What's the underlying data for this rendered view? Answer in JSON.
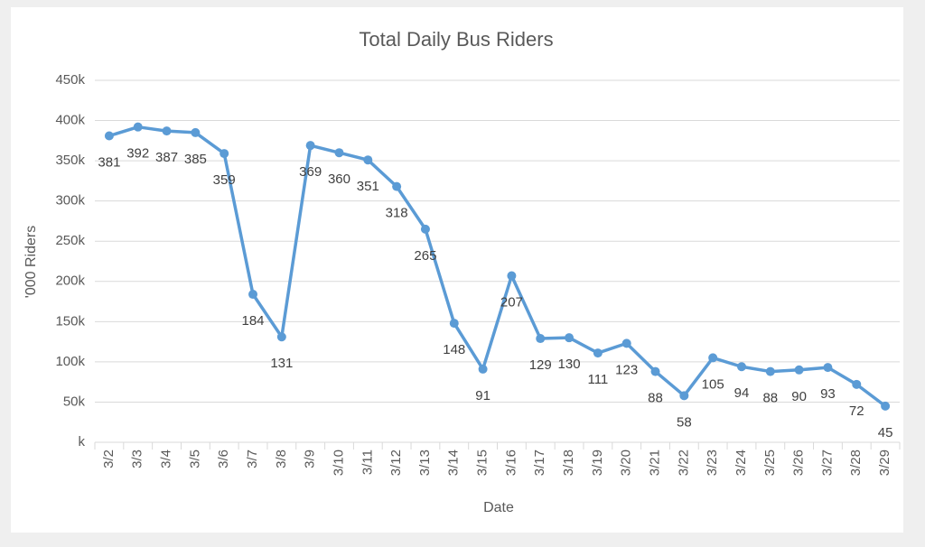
{
  "chart_data": {
    "type": "line",
    "title": "Total Daily Bus Riders",
    "x_label": "Date",
    "y_label": "'000 Riders",
    "categories": [
      "3/2",
      "3/3",
      "3/4",
      "3/5",
      "3/6",
      "3/7",
      "3/8",
      "3/9",
      "3/10",
      "3/11",
      "3/12",
      "3/13",
      "3/14",
      "3/15",
      "3/16",
      "3/17",
      "3/18",
      "3/19",
      "3/20",
      "3/21",
      "3/22",
      "3/23",
      "3/24",
      "3/25",
      "3/26",
      "3/27",
      "3/28",
      "3/29"
    ],
    "series": [
      {
        "name": "Total Daily Bus Riders",
        "color": "#5b9bd5",
        "values": [
          381,
          392,
          387,
          385,
          359,
          184,
          131,
          369,
          360,
          351,
          318,
          265,
          148,
          91,
          207,
          129,
          130,
          111,
          123,
          88,
          58,
          105,
          94,
          88,
          90,
          93,
          72,
          45
        ]
      }
    ],
    "ylim": [
      0,
      450
    ],
    "yticks": [
      {
        "value": 0,
        "label": "k"
      },
      {
        "value": 50,
        "label": "50k"
      },
      {
        "value": 100,
        "label": "100k"
      },
      {
        "value": 150,
        "label": "150k"
      },
      {
        "value": 200,
        "label": "200k"
      },
      {
        "value": 250,
        "label": "250k"
      },
      {
        "value": 300,
        "label": "300k"
      },
      {
        "value": 350,
        "label": "350k"
      },
      {
        "value": 400,
        "label": "400k"
      },
      {
        "value": 450,
        "label": "450k"
      }
    ],
    "grid": true
  }
}
